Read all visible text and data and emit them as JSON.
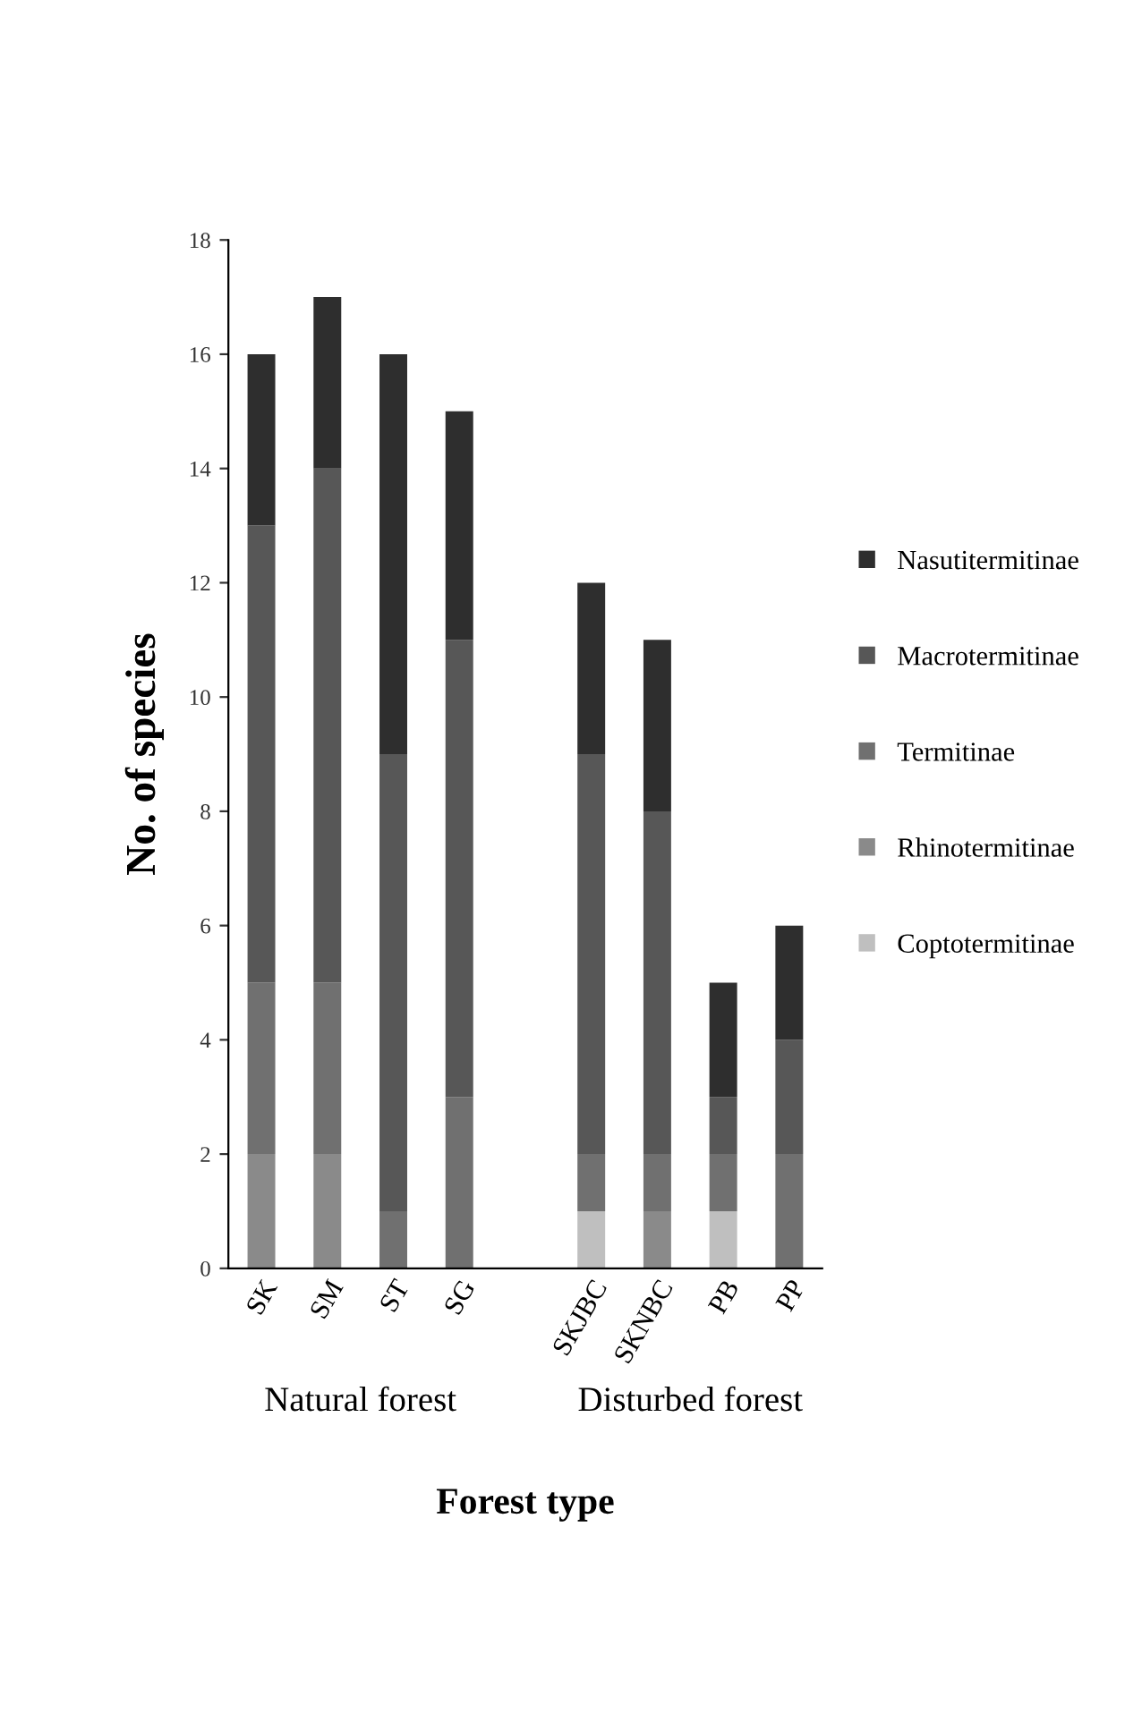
{
  "chart_data": {
    "type": "bar",
    "stacked": true,
    "xlabel": "Forest type",
    "ylabel": "No. of species",
    "categories": [
      "SK",
      "SM",
      "ST",
      "SG",
      null,
      "SKJBC",
      "SKNBC",
      "PB",
      "PP"
    ],
    "series": [
      {
        "name": "Coptotermitinae",
        "color": "#bfbfbf",
        "values": [
          0,
          0,
          0,
          0,
          null,
          1,
          0,
          1,
          0
        ]
      },
      {
        "name": "Rhinotermitinae",
        "color": "#8a8a8a",
        "values": [
          2,
          2,
          0,
          0,
          null,
          0,
          1,
          0,
          0
        ]
      },
      {
        "name": "Termitinae",
        "color": "#707070",
        "values": [
          3,
          3,
          1,
          3,
          null,
          1,
          1,
          1,
          2
        ]
      },
      {
        "name": "Macrotermitinae",
        "color": "#575757",
        "values": [
          8,
          9,
          8,
          8,
          null,
          7,
          6,
          1,
          2
        ]
      },
      {
        "name": "Nasutitermitinae",
        "color": "#2e2e2e",
        "values": [
          3,
          3,
          7,
          4,
          null,
          3,
          3,
          2,
          2
        ]
      }
    ],
    "ylim": [
      0,
      18
    ],
    "yticks": [
      0,
      2,
      4,
      6,
      8,
      10,
      12,
      14,
      16,
      18
    ],
    "grid": false,
    "legend": "right",
    "annotations": [
      "Natural forest",
      "Disturbed forest"
    ]
  }
}
